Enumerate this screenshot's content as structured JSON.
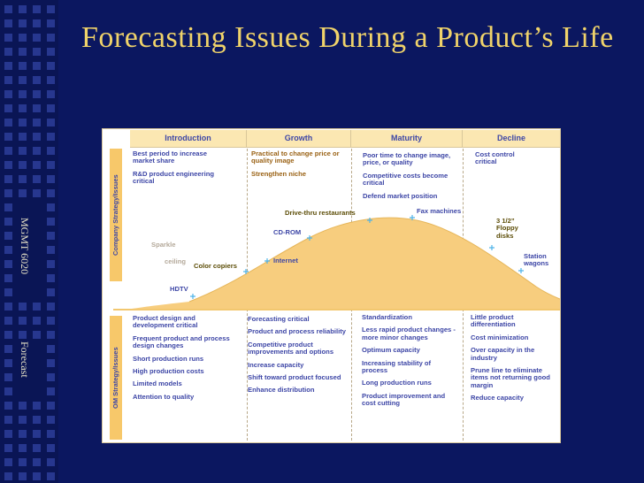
{
  "slide": {
    "title": "Forecasting Issues During a Product’s Life",
    "side_course": "MGMT 6020",
    "side_topic": "Forecast"
  },
  "table": {
    "stages": [
      "Introduction",
      "Growth",
      "Maturity",
      "Decline"
    ],
    "company_label": "Company Strategy/Issues",
    "om_label": "OM Strategy/Issues",
    "company": [
      [
        "Best period to increase market share",
        "R&D product engineering critical"
      ],
      [
        "Practical to change price or quality image",
        "Strengthen niche"
      ],
      [
        "Poor time to change image, price, or quality",
        "Competitive costs become critical",
        "Defend market position"
      ],
      [
        "Cost control critical"
      ]
    ],
    "om": [
      [
        "Product design and development critical",
        "Frequent product and process design changes",
        "Short production runs",
        "High production costs",
        "Limited models",
        "Attention to quality"
      ],
      [
        "Forecasting critical",
        "Product and process reliability",
        "Competitive product improvements and options",
        "Increase capacity",
        "Shift toward product focused",
        "Enhance distribution"
      ],
      [
        "Standardization",
        "Less rapid product changes - more minor changes",
        "Optimum capacity",
        "Increasing stability of process",
        "Long production runs",
        "Product improvement and cost cutting"
      ],
      [
        "Little product differentiation",
        "Cost minimization",
        "Over capacity in the industry",
        "Prune line to eliminate items not returning good margin",
        "Reduce capacity"
      ]
    ]
  },
  "curve_labels": {
    "hdtv": "HDTV",
    "color_copiers": "Color copiers",
    "internet": "Internet",
    "cdrom": "CD-ROM",
    "drive_thru": "Drive-thru restaurants",
    "fax": "Fax machines",
    "floppy": "3 1/2” Floppy disks",
    "station_wagons": "Station wagons",
    "faded_1": "Sparkle",
    "faded_2": "ceiling"
  },
  "colors": {
    "background": "#0b1760",
    "title": "#f0d36a",
    "curve_fill": "#f7cd7e",
    "header_fill": "#fbe7b2",
    "text_blue": "#3d46a6",
    "marker": "#4fb3e8"
  }
}
